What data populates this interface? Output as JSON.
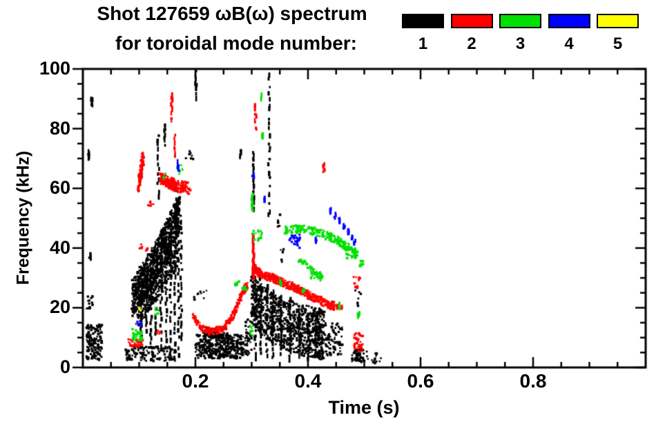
{
  "figure": {
    "title_line1": "Shot 127659 ωB(ω) spectrum",
    "title_line2": "for toroidal mode number:",
    "background": "#ffffff",
    "axis_color": "#000000"
  },
  "legend": {
    "items": [
      {
        "label": "1",
        "color": "#000000"
      },
      {
        "label": "2",
        "color": "#ff0000"
      },
      {
        "label": "3",
        "color": "#00e000"
      },
      {
        "label": "4",
        "color": "#0000ff"
      },
      {
        "label": "5",
        "color": "#ffff00"
      }
    ]
  },
  "chart_data": {
    "type": "scatter",
    "title": "Shot 127659 ωB(ω) spectrum for toroidal mode number: 1 2 3 4 5",
    "xlabel": "Time (s)",
    "ylabel": "Frequency (kHz)",
    "xlim": [
      0,
      1.0
    ],
    "ylim": [
      0,
      100
    ],
    "grid": false,
    "legend_position": "top-right",
    "x_ticks": {
      "major": [
        0.2,
        0.4,
        0.6,
        0.8
      ],
      "labels": [
        "0.2",
        "0.4",
        "0.6",
        "0.8"
      ],
      "minor_step": 0.05
    },
    "y_ticks": {
      "major": [
        0,
        20,
        40,
        60,
        80,
        100
      ],
      "labels": [
        "0",
        "20",
        "40",
        "60",
        "80",
        "100"
      ],
      "minor_step": 5
    },
    "cluster_format": "['r',t0,t1,f0,f1,n]=uniform rect scatter; ['v',t,f0,f1,n]=vertical dashed streak; ['p',halfwidth_kHz,n,[[t,f]...]]=scatter along polyline",
    "series": [
      {
        "name": "n = 1",
        "legend_label": "1",
        "color": "#000000",
        "clusters": [
          [
            "r",
            0.006,
            0.034,
            2.5,
            14.5,
            150
          ],
          [
            "r",
            0.006,
            0.018,
            19,
            24,
            16
          ],
          [
            "v",
            0.013,
            36,
            38.5,
            5
          ],
          [
            "v",
            0.01,
            70,
            72.5,
            5
          ],
          [
            "v",
            0.016,
            87.5,
            90.5,
            6
          ],
          [
            "p",
            6.5,
            900,
            [
              [
                0.088,
                23
              ],
              [
                0.1,
                26.5
              ],
              [
                0.112,
                30
              ],
              [
                0.125,
                34
              ],
              [
                0.138,
                38.5
              ],
              [
                0.15,
                43
              ],
              [
                0.162,
                48
              ],
              [
                0.172,
                52
              ]
            ]
          ],
          [
            "p",
            4.5,
            300,
            [
              [
                0.098,
                18
              ],
              [
                0.17,
                38
              ]
            ]
          ],
          [
            "v",
            0.104,
            9,
            27,
            16
          ],
          [
            "v",
            0.112,
            12,
            31,
            16
          ],
          [
            "v",
            0.121,
            6,
            34,
            18
          ],
          [
            "v",
            0.13,
            10,
            39,
            18
          ],
          [
            "v",
            0.139,
            5,
            44,
            20
          ],
          [
            "v",
            0.148,
            8,
            47,
            20
          ],
          [
            "v",
            0.156,
            3,
            50,
            22
          ],
          [
            "v",
            0.164,
            6,
            53,
            22
          ],
          [
            "v",
            0.17,
            4,
            55,
            22
          ],
          [
            "v",
            0.175,
            8,
            50,
            20
          ],
          [
            "v",
            0.134,
            57,
            79,
            13
          ],
          [
            "v",
            0.146,
            74,
            82,
            7
          ],
          [
            "v",
            0.166,
            45,
            62,
            9
          ],
          [
            "r",
            0.183,
            0.196,
            69,
            72.5,
            7
          ],
          [
            "v",
            0.201,
            90,
            99.5,
            8
          ],
          [
            "r",
            0.196,
            0.222,
            22,
            26,
            9
          ],
          [
            "r",
            0.076,
            0.165,
            2,
            7,
            130
          ],
          [
            "r",
            0.2,
            0.285,
            3,
            11,
            380
          ],
          [
            "r",
            0.213,
            0.258,
            10,
            13.5,
            60
          ],
          [
            "r",
            0.285,
            0.3,
            4,
            16,
            40
          ],
          [
            "p",
            8.5,
            900,
            [
              [
                0.3,
                23
              ],
              [
                0.318,
                19
              ],
              [
                0.34,
                16.5
              ],
              [
                0.365,
                14
              ],
              [
                0.39,
                12.5
              ],
              [
                0.415,
                11.5
              ],
              [
                0.428,
                11
              ]
            ]
          ],
          [
            "v",
            0.306,
            2,
            31,
            18
          ],
          [
            "v",
            0.316,
            4,
            30,
            18
          ],
          [
            "v",
            0.327,
            3,
            28,
            18
          ],
          [
            "v",
            0.338,
            2,
            27,
            16
          ],
          [
            "v",
            0.352,
            4,
            25,
            16
          ],
          [
            "v",
            0.368,
            2,
            23,
            16
          ],
          [
            "v",
            0.384,
            3,
            21,
            14
          ],
          [
            "v",
            0.4,
            2,
            19,
            14
          ],
          [
            "v",
            0.414,
            3,
            17,
            12
          ],
          [
            "r",
            0.43,
            0.462,
            4,
            15,
            70
          ],
          [
            "v",
            0.303,
            52,
            73,
            20
          ],
          [
            "v",
            0.331,
            50,
            99.5,
            24
          ],
          [
            "r",
            0.344,
            0.351,
            46,
            52,
            7
          ],
          [
            "r",
            0.348,
            0.358,
            34,
            40,
            7
          ],
          [
            "r",
            0.478,
            0.501,
            1.5,
            6,
            55
          ],
          [
            "r",
            0.504,
            0.53,
            1,
            6,
            16
          ],
          [
            "v",
            0.437,
            9.5,
            11.5,
            4
          ],
          [
            "r",
            0.484,
            0.494,
            20,
            26,
            7
          ],
          [
            "v",
            0.28,
            70,
            73,
            4
          ]
        ]
      },
      {
        "name": "n = 2",
        "legend_label": "2",
        "color": "#ff0000",
        "clusters": [
          [
            "p",
            2.2,
            110,
            [
              [
                0.099,
                60
              ],
              [
                0.107,
                70
              ]
            ]
          ],
          [
            "p",
            2.0,
            200,
            [
              [
                0.138,
                63.5
              ],
              [
                0.152,
                62
              ],
              [
                0.168,
                60.8
              ],
              [
                0.19,
                60
              ]
            ]
          ],
          [
            "v",
            0.158,
            82,
            92,
            9
          ],
          [
            "v",
            0.163,
            70,
            78,
            7
          ],
          [
            "r",
            0.114,
            0.128,
            53.5,
            56.5,
            9
          ],
          [
            "r",
            0.081,
            0.107,
            7,
            9.5,
            45
          ],
          [
            "r",
            0.131,
            0.138,
            11,
            13,
            6
          ],
          [
            "r",
            0.1,
            0.117,
            39,
            42,
            8
          ],
          [
            "p",
            1.2,
            280,
            [
              [
                0.197,
                17
              ],
              [
                0.209,
                13.5
              ],
              [
                0.227,
                12
              ],
              [
                0.247,
                12.8
              ],
              [
                0.263,
                16
              ],
              [
                0.275,
                21
              ],
              [
                0.285,
                25.5
              ],
              [
                0.291,
                27.5
              ]
            ]
          ],
          [
            "v",
            0.303,
            30,
            45,
            36
          ],
          [
            "p",
            1.4,
            430,
            [
              [
                0.306,
                33
              ],
              [
                0.315,
                31.5
              ],
              [
                0.33,
                30.5
              ],
              [
                0.35,
                29
              ],
              [
                0.375,
                27
              ],
              [
                0.4,
                24.5
              ],
              [
                0.425,
                22
              ],
              [
                0.447,
                20.5
              ]
            ]
          ],
          [
            "r",
            0.45,
            0.462,
            19.5,
            21.5,
            12
          ],
          [
            "v",
            0.307,
            79,
            88,
            8
          ],
          [
            "v",
            0.428,
            65.5,
            68.5,
            5
          ],
          [
            "r",
            0.481,
            0.494,
            26,
            31,
            16
          ],
          [
            "r",
            0.482,
            0.498,
            5,
            11.5,
            38
          ]
        ]
      },
      {
        "name": "n = 3",
        "legend_label": "3",
        "color": "#00e000",
        "clusters": [
          [
            "p",
            1.3,
            220,
            [
              [
                0.358,
                45.8
              ],
              [
                0.378,
                46.3
              ],
              [
                0.398,
                46.2
              ],
              [
                0.418,
                45.2
              ],
              [
                0.438,
                43.8
              ],
              [
                0.458,
                41.8
              ],
              [
                0.474,
                39.8
              ],
              [
                0.487,
                38.2
              ]
            ]
          ],
          [
            "p",
            0.9,
            55,
            [
              [
                0.383,
                36.5
              ],
              [
                0.398,
                34
              ],
              [
                0.413,
                31.8
              ],
              [
                0.428,
                29.8
              ]
            ]
          ],
          [
            "r",
            0.405,
            0.427,
            29,
            32.5,
            18
          ],
          [
            "v",
            0.392,
            25,
            26.5,
            4
          ],
          [
            "r",
            0.27,
            0.279,
            27.3,
            29,
            8
          ],
          [
            "r",
            0.283,
            0.292,
            26,
            27.5,
            8
          ],
          [
            "v",
            0.301,
            52.5,
            58,
            9
          ],
          [
            "r",
            0.302,
            0.318,
            42.5,
            47.5,
            14
          ],
          [
            "v",
            0.317,
            89.5,
            91.5,
            3
          ],
          [
            "v",
            0.319,
            76.5,
            78.5,
            3
          ],
          [
            "r",
            0.088,
            0.105,
            9,
            13,
            40
          ],
          [
            "r",
            0.128,
            0.14,
            17.5,
            20,
            5
          ],
          [
            "r",
            0.468,
            0.488,
            36.5,
            40.5,
            28
          ],
          [
            "r",
            0.49,
            0.499,
            33,
            36,
            7
          ],
          [
            "v",
            0.456,
            19.5,
            21.5,
            4
          ],
          [
            "v",
            0.49,
            16.5,
            18.5,
            4
          ],
          [
            "r",
            0.143,
            0.148,
            63,
            65,
            4
          ],
          [
            "r",
            0.17,
            0.179,
            64,
            68,
            7
          ],
          [
            "r",
            0.296,
            0.305,
            10,
            15,
            7
          ],
          [
            "v",
            0.352,
            27.5,
            29.5,
            4
          ]
        ]
      },
      {
        "name": "n = 4",
        "legend_label": "4",
        "color": "#0000ff",
        "clusters": [
          [
            "v",
            0.44,
            51.5,
            53.5,
            4
          ],
          [
            "v",
            0.448,
            49.8,
            51.5,
            4
          ],
          [
            "v",
            0.456,
            48.5,
            50,
            4
          ],
          [
            "v",
            0.464,
            46.5,
            48,
            3
          ],
          [
            "v",
            0.471,
            44.8,
            46.2,
            3
          ],
          [
            "v",
            0.478,
            43,
            44.5,
            3
          ],
          [
            "v",
            0.483,
            41.5,
            43,
            3
          ],
          [
            "r",
            0.366,
            0.386,
            40,
            44.5,
            24
          ],
          [
            "v",
            0.415,
            41.8,
            43.4,
            3
          ],
          [
            "v",
            0.304,
            63.2,
            65.2,
            5
          ],
          [
            "v",
            0.323,
            55.8,
            57.2,
            3
          ],
          [
            "v",
            0.169,
            66,
            69,
            5
          ],
          [
            "r",
            0.092,
            0.105,
            13.5,
            16.5,
            7
          ]
        ]
      },
      {
        "name": "n = 5",
        "legend_label": "5",
        "color": "#ffff00",
        "clusters": [
          [
            "r",
            0.0995,
            0.1035,
            18.8,
            20.3,
            4
          ]
        ]
      }
    ]
  }
}
